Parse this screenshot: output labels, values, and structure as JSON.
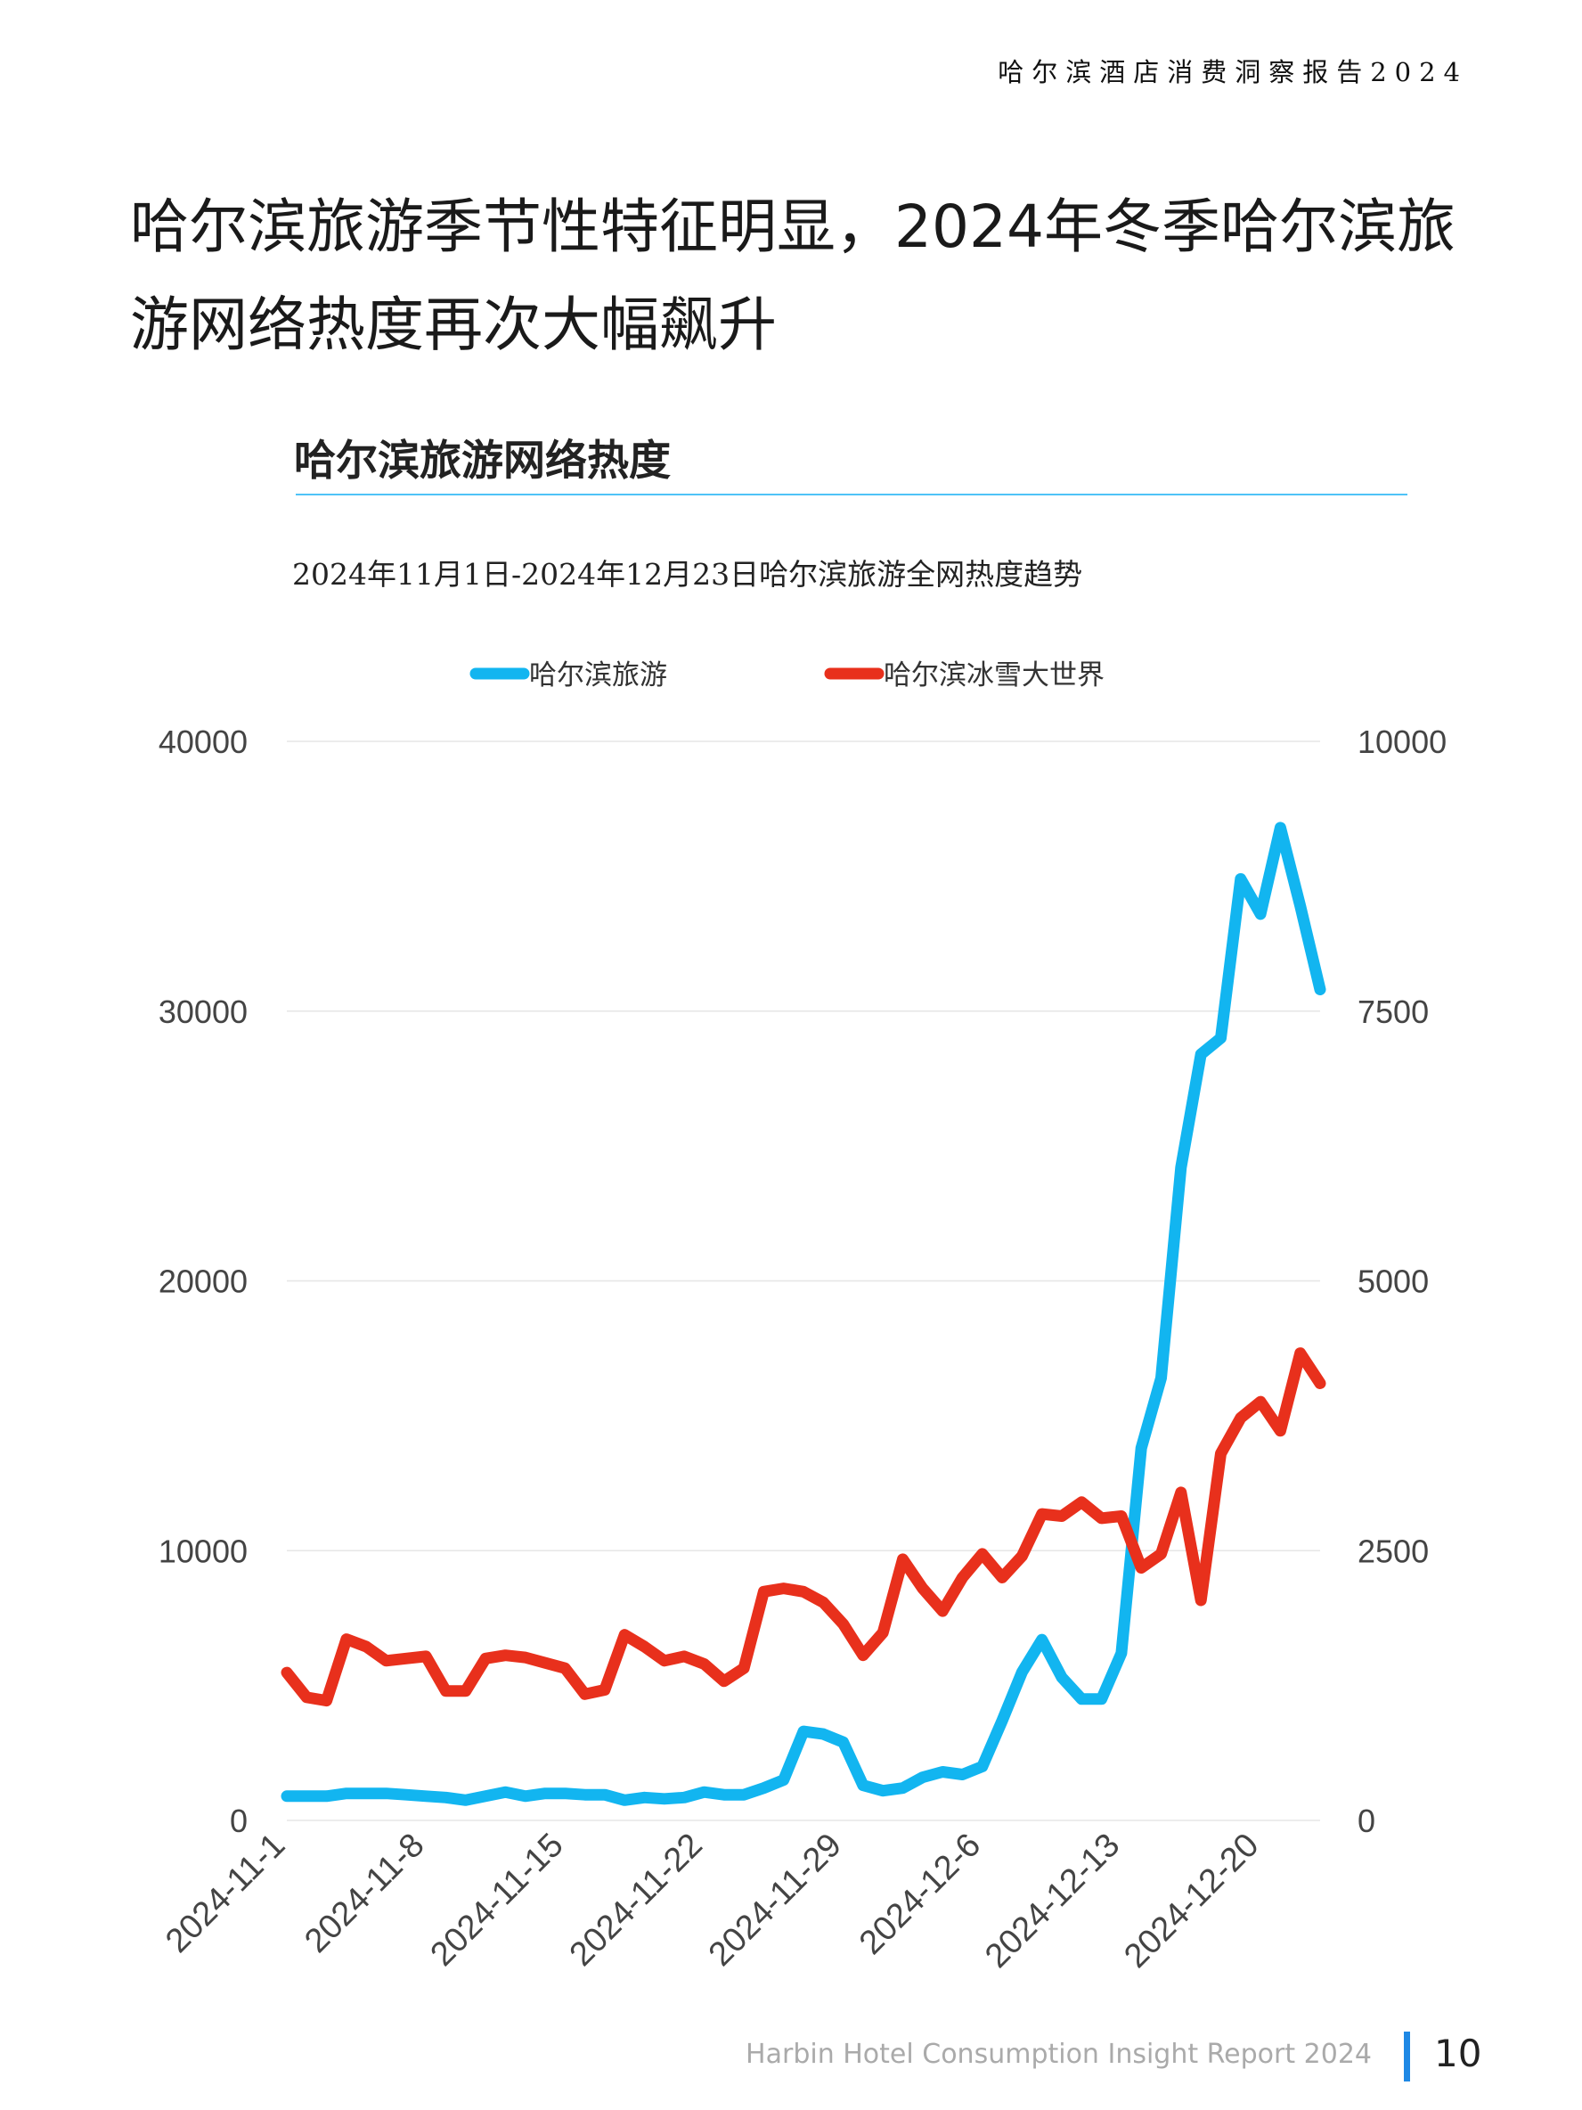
{
  "header": {
    "report_title": "哈尔滨酒店消费洞察报告2024"
  },
  "headline": "哈尔滨旅游季节性特征明显，2024年冬季哈尔滨旅游网络热度再次大幅飙升",
  "section": {
    "title": "哈尔滨旅游网络热度"
  },
  "chart_data": {
    "type": "line",
    "title": "2024年11月1日-2024年12月23日哈尔滨旅游全网热度趋势",
    "x_start": "2024-11-1",
    "x_tick_labels": [
      "2024-11-1",
      "2024-11-8",
      "2024-11-15",
      "2024-11-22",
      "2024-11-29",
      "2024-12-6",
      "2024-12-13",
      "2024-12-20"
    ],
    "x_tick_day_index": [
      0,
      7,
      14,
      21,
      28,
      35,
      42,
      49
    ],
    "left_axis": {
      "min": 0,
      "max": 40000,
      "ticks": [
        "0",
        "10000",
        "20000",
        "30000",
        "40000"
      ]
    },
    "right_axis": {
      "min": 0,
      "max": 10000,
      "ticks": [
        "0",
        "2500",
        "5000",
        "7500",
        "10000"
      ]
    },
    "grid": "horizontal",
    "legend_position": "top-center",
    "series": [
      {
        "name": "哈尔滨旅游",
        "axis": "left",
        "color": "#12b5f0",
        "values": [
          900,
          900,
          900,
          1000,
          1000,
          1000,
          950,
          900,
          850,
          750,
          900,
          1050,
          900,
          1000,
          1000,
          950,
          950,
          750,
          850,
          800,
          850,
          1050,
          950,
          950,
          1200,
          1500,
          3300,
          3200,
          2900,
          1300,
          1100,
          1200,
          1600,
          1800,
          1700,
          2000,
          3700,
          5500,
          6700,
          5300,
          4500,
          4500,
          6200,
          13800,
          16400,
          24200,
          28400,
          29000,
          34900,
          33600,
          36800,
          33900,
          30800
        ]
      },
      {
        "name": "哈尔滨冰雪大世界",
        "axis": "right",
        "color": "#e8301c",
        "values": [
          1370,
          1140,
          1110,
          1680,
          1610,
          1480,
          1500,
          1520,
          1200,
          1200,
          1500,
          1530,
          1510,
          1460,
          1410,
          1170,
          1210,
          1720,
          1610,
          1480,
          1520,
          1450,
          1290,
          1410,
          2120,
          2150,
          2120,
          2020,
          1820,
          1530,
          1740,
          2420,
          2150,
          1940,
          2250,
          2470,
          2250,
          2450,
          2840,
          2820,
          2950,
          2800,
          2820,
          2340,
          2470,
          3040,
          2040,
          3400,
          3730,
          3880,
          3610,
          4330,
          4050
        ]
      }
    ]
  },
  "footer": {
    "report_name_en": "Harbin Hotel Consumption Insight Report 2024",
    "page_number": "10"
  }
}
